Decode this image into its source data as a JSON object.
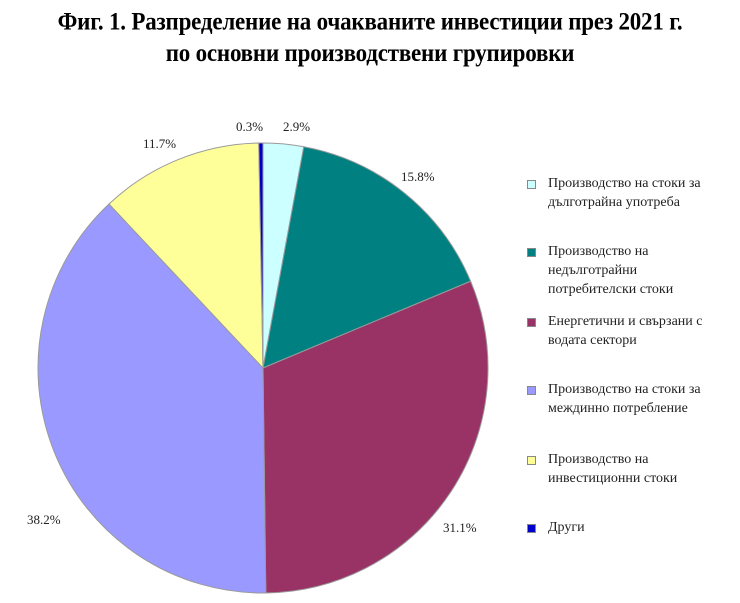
{
  "title": {
    "line1": "Фиг. 1. Разпределение на очакваните инвестиции през 2021 г.",
    "line2": "по основни производствени групировки"
  },
  "chart_data": {
    "type": "pie",
    "title": "Фиг. 1. Разпределение на очакваните инвестиции през 2021 г. по основни производствени групировки",
    "categories": [
      "Производство на стоки за дълготрайна употреба",
      "Производство на недълготрайни потребителски стоки",
      "Енергетични и свързани с водата сектори",
      "Производство на стоки за междинно потребление",
      "Производство на инвестиционни стоки",
      "Други"
    ],
    "values": [
      2.9,
      15.8,
      31.1,
      38.2,
      11.7,
      0.3
    ],
    "unit": "%",
    "colors": [
      "#ccffff",
      "#008080",
      "#993366",
      "#9999ff",
      "#ffff99",
      "#0000cc"
    ],
    "start_angle": "12 o'clock, clockwise",
    "legend_position": "right"
  },
  "labels": [
    "2.9%",
    "15.8%",
    "31.1%",
    "38.2%",
    "11.7%",
    "0.3%"
  ],
  "legend": [
    {
      "text": "Производство на стоки за дълготрайна употреба",
      "color": "#ccffff"
    },
    {
      "text": "Производство на недълготрайни потребителски стоки",
      "color": "#008080"
    },
    {
      "text": "Енергетични и свързани с водата сектори",
      "color": "#993366"
    },
    {
      "text": "Производство на стоки за междинно потребление",
      "color": "#9999ff"
    },
    {
      "text": "Производство на инвестиционни стоки",
      "color": "#ffff99"
    },
    {
      "text": "Други",
      "color": "#0000cc"
    }
  ]
}
